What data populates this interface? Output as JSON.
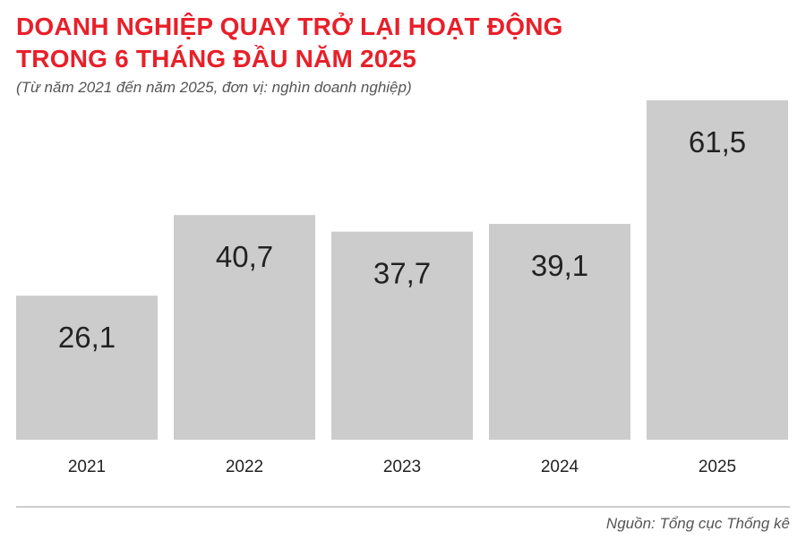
{
  "header": {
    "title_line1": "DOANH NGHIỆP QUAY TRỞ LẠI HOẠT ĐỘNG",
    "title_line2": "TRONG 6 THÁNG ĐẦU NĂM 2025",
    "subtitle": "(Từ năm 2021 đến năm 2025, đơn vị: nghìn doanh nghiệp)"
  },
  "footer": {
    "source": "Nguồn: Tổng cục Thống kê"
  },
  "colors": {
    "title": "#e8202a",
    "bar": "#cccccc",
    "text": "#222222",
    "muted": "#555555",
    "axis": "#999999"
  },
  "chart_data": {
    "type": "bar",
    "categories": [
      "2021",
      "2022",
      "2023",
      "2024",
      "2025"
    ],
    "values": [
      26.1,
      40.7,
      37.7,
      39.1,
      61.5
    ],
    "value_labels": [
      "26,1",
      "40,7",
      "37,7",
      "39,1",
      "61,5"
    ],
    "ylim": [
      0,
      65
    ],
    "grid": false,
    "legend": "none"
  }
}
